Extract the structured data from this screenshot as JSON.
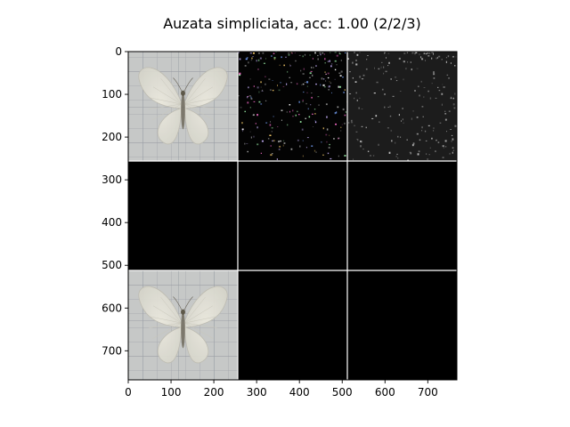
{
  "chart_data": {
    "type": "heatmap",
    "title": "Auzata simpliciata, acc: 1.00 (2/2/3)",
    "xlabel": "",
    "ylabel": "",
    "xlim": [
      0,
      768
    ],
    "ylim": [
      768,
      0
    ],
    "x_ticks": [
      0,
      100,
      200,
      300,
      400,
      500,
      600,
      700
    ],
    "y_ticks": [
      0,
      100,
      200,
      300,
      400,
      500,
      600,
      700
    ],
    "grid": {
      "rows": 3,
      "cols": 3,
      "tile_size": 256,
      "separator_color": "#ffffff"
    },
    "tiles": [
      {
        "row": 0,
        "col": 0,
        "content": "photo",
        "subject": "white moth on gridded paper"
      },
      {
        "row": 0,
        "col": 1,
        "content": "speckle",
        "base_color": "#030303"
      },
      {
        "row": 0,
        "col": 2,
        "content": "speckle",
        "base_color": "#1c1c1c"
      },
      {
        "row": 1,
        "col": 0,
        "content": "blank",
        "base_color": "#000000"
      },
      {
        "row": 1,
        "col": 1,
        "content": "blank",
        "base_color": "#000000"
      },
      {
        "row": 1,
        "col": 2,
        "content": "blank",
        "base_color": "#000000"
      },
      {
        "row": 2,
        "col": 0,
        "content": "photo",
        "subject": "white moth on gridded paper"
      },
      {
        "row": 2,
        "col": 1,
        "content": "blank",
        "base_color": "#000000"
      },
      {
        "row": 2,
        "col": 2,
        "content": "blank",
        "base_color": "#000000"
      }
    ]
  }
}
